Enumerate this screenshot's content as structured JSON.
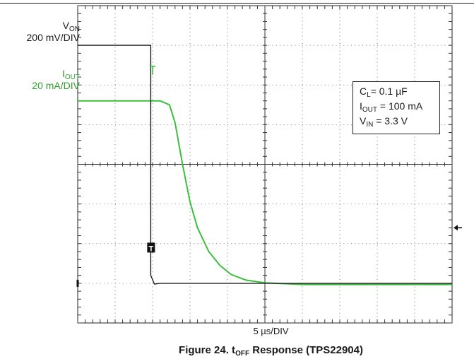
{
  "chart_data": {
    "type": "line",
    "title": "",
    "xlabel": "5 µs/DIV",
    "grid": true,
    "x_divisions": 10,
    "y_divisions": 8,
    "xlim": [
      0,
      10
    ],
    "ylim": [
      0,
      8
    ],
    "series": [
      {
        "name": "V_ON",
        "scale": "200 mV/DIV",
        "color": "#1a1a1a",
        "x": [
          0,
          1.95,
          1.95,
          2.05,
          2.2,
          10
        ],
        "y": [
          7.0,
          7.0,
          1.2,
          0.98,
          1.0,
          1.0
        ]
      },
      {
        "name": "I_OUT",
        "scale": "20 mA/DIV",
        "color": "#3cbf3c",
        "x": [
          0,
          1.95,
          2.2,
          2.45,
          2.6,
          2.8,
          3.0,
          3.2,
          3.5,
          3.8,
          4.1,
          4.5,
          5.0,
          6.0,
          10
        ],
        "y": [
          5.6,
          5.6,
          5.6,
          5.5,
          5.05,
          4.0,
          3.05,
          2.4,
          1.8,
          1.45,
          1.22,
          1.08,
          1.01,
          0.97,
          0.97
        ]
      }
    ],
    "annotations": {
      "CL": "0.1 µF",
      "IOUT": "100 mA",
      "VIN": "3.3 V"
    }
  },
  "labels": {
    "von_name": "V",
    "von_sub": "ON",
    "von_scale": "200 mV/DIV",
    "iout_name": "I",
    "iout_sub": "OUT",
    "iout_scale": "20 mA/DIV",
    "trigger_marker": "T",
    "cl_prefix": "C",
    "cl_sub": "L",
    "cl_value": "= 0.1 µF",
    "iout_legend_prefix": "I",
    "iout_legend_sub": "OUT",
    "iout_legend_value": " = 100 mA",
    "vin_prefix": "V",
    "vin_sub": "IN",
    "vin_value": " = 3.3 V",
    "xaxis": "5 µs/DIV",
    "caption_prefix": "Figure 24. t",
    "caption_sub": "OFF",
    "caption_suffix": " Response (TPS22904)"
  }
}
